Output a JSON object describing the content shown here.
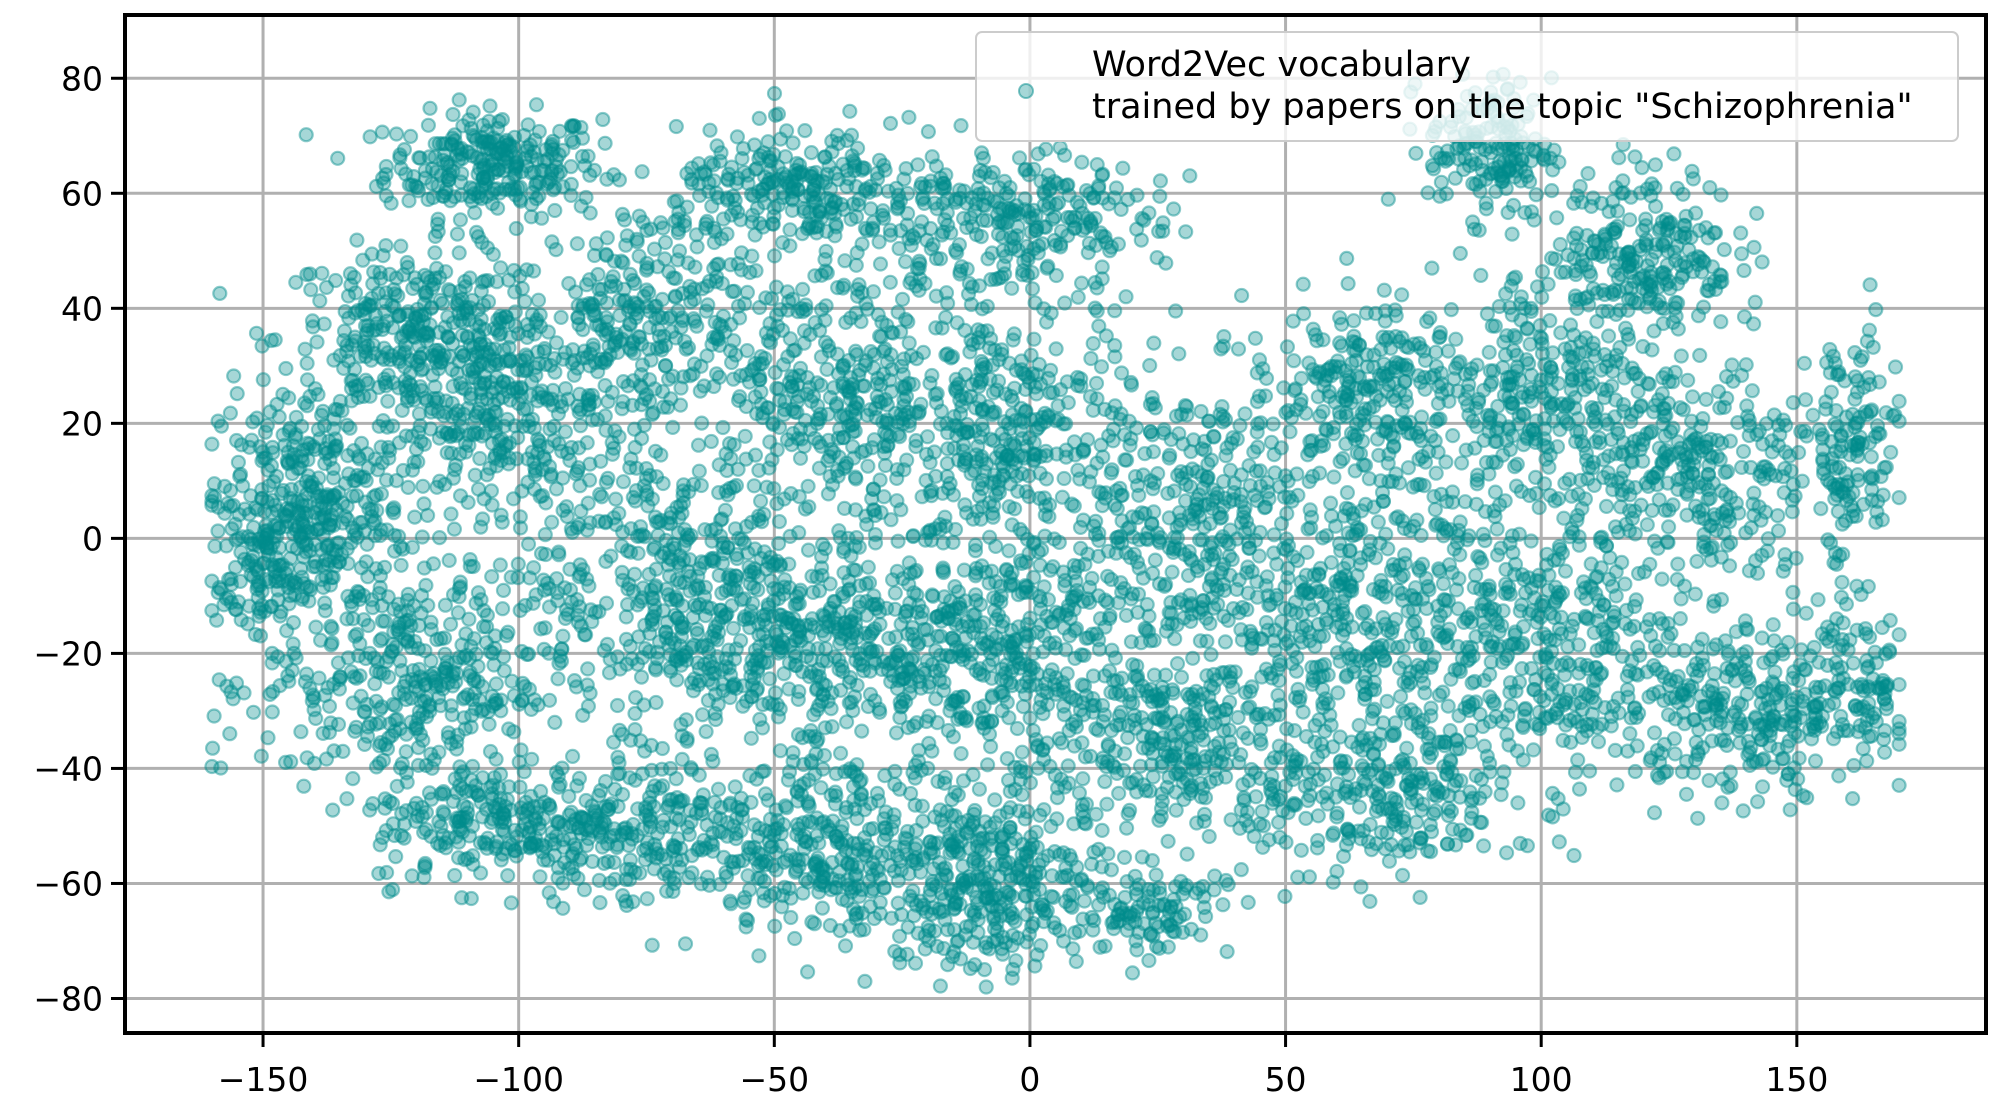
{
  "chart_data": {
    "type": "scatter",
    "title": "",
    "xlabel": "",
    "ylabel": "",
    "xlim": [
      -177,
      187
    ],
    "ylim": [
      -86,
      91
    ],
    "grid": true,
    "x_ticks": [
      -150,
      -100,
      -50,
      0,
      50,
      100,
      150
    ],
    "y_ticks": [
      -80,
      -60,
      -40,
      -20,
      0,
      20,
      40,
      60,
      80
    ],
    "tick_labels": {
      "x": [
        "−150",
        "−100",
        "−50",
        "0",
        "50",
        "100",
        "150"
      ],
      "y": [
        "−80",
        "−60",
        "−40",
        "−20",
        "0",
        "20",
        "40",
        "60",
        "80"
      ]
    },
    "legend": {
      "placement": "top-right",
      "lines": [
        "Word2Vec vocabulary",
        "trained by papers on the topic \"Schizophrenia\""
      ]
    },
    "series": [
      {
        "name": "Word2Vec vocabulary trained by papers on the topic \"Schizophrenia\"",
        "color": "#008b8b",
        "alpha": 0.35,
        "clusters": [
          {
            "center": [
              -105,
              65
            ],
            "spread": [
              14,
              6
            ],
            "count": 260
          },
          {
            "center": [
              -120,
              35
            ],
            "spread": [
              18,
              10
            ],
            "count": 320
          },
          {
            "center": [
              -140,
              5
            ],
            "spread": [
              12,
              14
            ],
            "count": 300
          },
          {
            "center": [
              -100,
              20
            ],
            "spread": [
              20,
              15
            ],
            "count": 380
          },
          {
            "center": [
              -120,
              -25
            ],
            "spread": [
              20,
              13
            ],
            "count": 380
          },
          {
            "center": [
              -105,
              -50
            ],
            "spread": [
              16,
              7
            ],
            "count": 200
          },
          {
            "center": [
              -75,
              40
            ],
            "spread": [
              14,
              12
            ],
            "count": 220
          },
          {
            "center": [
              -70,
              -10
            ],
            "spread": [
              16,
              15
            ],
            "count": 340
          },
          {
            "center": [
              -75,
              -50
            ],
            "spread": [
              16,
              9
            ],
            "count": 240
          },
          {
            "center": [
              -45,
              60
            ],
            "spread": [
              16,
              7
            ],
            "count": 250
          },
          {
            "center": [
              -40,
              25
            ],
            "spread": [
              18,
              15
            ],
            "count": 340
          },
          {
            "center": [
              -40,
              -20
            ],
            "spread": [
              18,
              15
            ],
            "count": 380
          },
          {
            "center": [
              -35,
              -55
            ],
            "spread": [
              18,
              10
            ],
            "count": 300
          },
          {
            "center": [
              -5,
              55
            ],
            "spread": [
              20,
              8
            ],
            "count": 270
          },
          {
            "center": [
              -5,
              20
            ],
            "spread": [
              18,
              15
            ],
            "count": 340
          },
          {
            "center": [
              -5,
              -20
            ],
            "spread": [
              18,
              15
            ],
            "count": 380
          },
          {
            "center": [
              -5,
              -60
            ],
            "spread": [
              14,
              10
            ],
            "count": 300
          },
          {
            "center": [
              30,
              5
            ],
            "spread": [
              16,
              15
            ],
            "count": 300
          },
          {
            "center": [
              30,
              -35
            ],
            "spread": [
              18,
              13
            ],
            "count": 340
          },
          {
            "center": [
              25,
              -65
            ],
            "spread": [
              10,
              5
            ],
            "count": 90
          },
          {
            "center": [
              65,
              25
            ],
            "spread": [
              15,
              10
            ],
            "count": 260
          },
          {
            "center": [
              65,
              -10
            ],
            "spread": [
              18,
              15
            ],
            "count": 340
          },
          {
            "center": [
              70,
              -45
            ],
            "spread": [
              16,
              10
            ],
            "count": 260
          },
          {
            "center": [
              90,
              68
            ],
            "spread": [
              8,
              8
            ],
            "count": 160
          },
          {
            "center": [
              100,
              25
            ],
            "spread": [
              15,
              15
            ],
            "count": 280
          },
          {
            "center": [
              100,
              -20
            ],
            "spread": [
              18,
              15
            ],
            "count": 340
          },
          {
            "center": [
              120,
              50
            ],
            "spread": [
              12,
              10
            ],
            "count": 240
          },
          {
            "center": [
              130,
              10
            ],
            "spread": [
              16,
              14
            ],
            "count": 300
          },
          {
            "center": [
              140,
              -30
            ],
            "spread": [
              16,
              10
            ],
            "count": 260
          },
          {
            "center": [
              160,
              15
            ],
            "spread": [
              7,
              14
            ],
            "count": 140
          },
          {
            "center": [
              162,
              -25
            ],
            "spread": [
              6,
              10
            ],
            "count": 90
          },
          {
            "center": [
              -150,
              -5
            ],
            "spread": [
              6,
              12
            ],
            "count": 130
          }
        ]
      }
    ]
  }
}
